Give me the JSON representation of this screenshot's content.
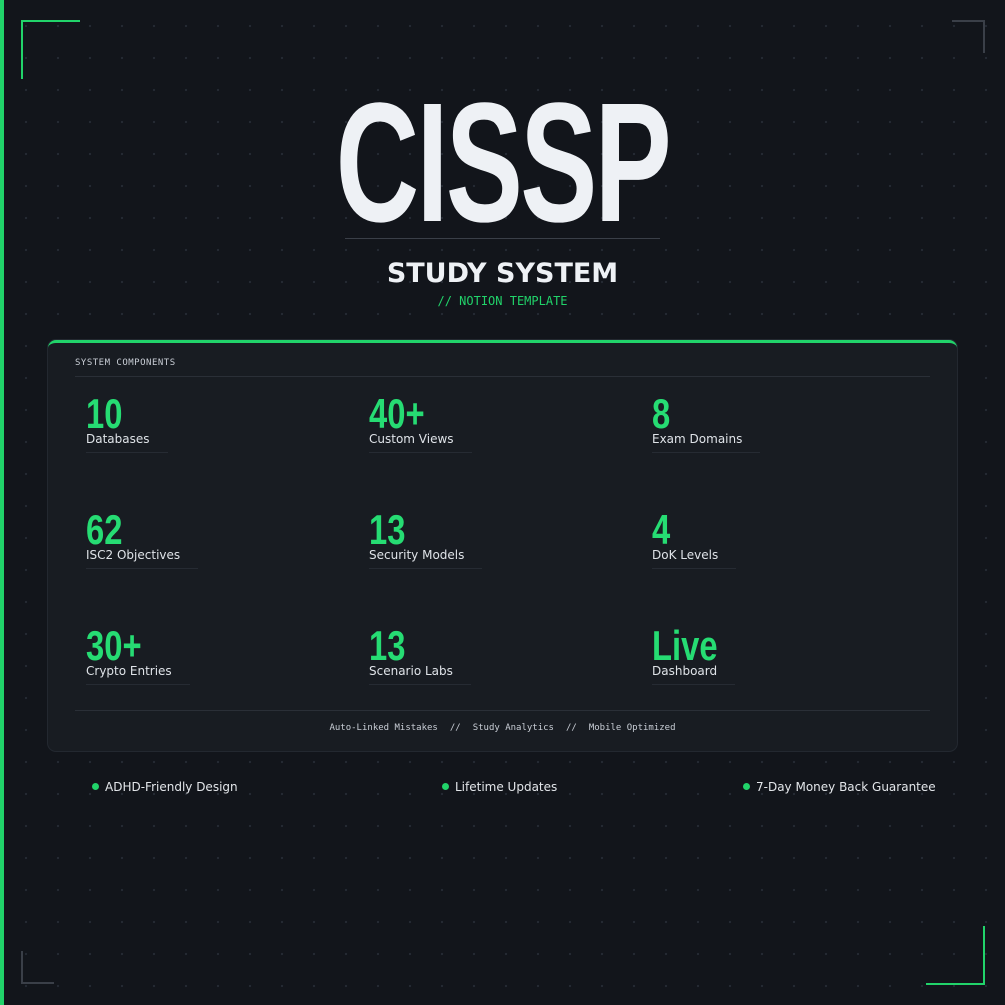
{
  "header": {
    "title": "CISSP",
    "subtitle": "STUDY SYSTEM",
    "tag": "// NOTION TEMPLATE"
  },
  "panel": {
    "heading": "SYSTEM COMPONENTS",
    "stats": [
      {
        "value": "10",
        "label": "Databases"
      },
      {
        "value": "40+",
        "label": "Custom Views"
      },
      {
        "value": "8",
        "label": "Exam Domains"
      },
      {
        "value": "62",
        "label": "ISC2 Objectives"
      },
      {
        "value": "13",
        "label": "Security Models"
      },
      {
        "value": "4",
        "label": "DoK Levels"
      },
      {
        "value": "30+",
        "label": "Crypto Entries"
      },
      {
        "value": "13",
        "label": "Scenario Labs"
      },
      {
        "value": "Live",
        "label": "Dashboard"
      }
    ],
    "footer": [
      "Auto-Linked Mistakes",
      "//",
      "Study Analytics",
      "//",
      "Mobile Optimized"
    ]
  },
  "features": [
    "ADHD-Friendly Design",
    "Lifetime Updates",
    "7-Day Money Back Guarantee"
  ]
}
